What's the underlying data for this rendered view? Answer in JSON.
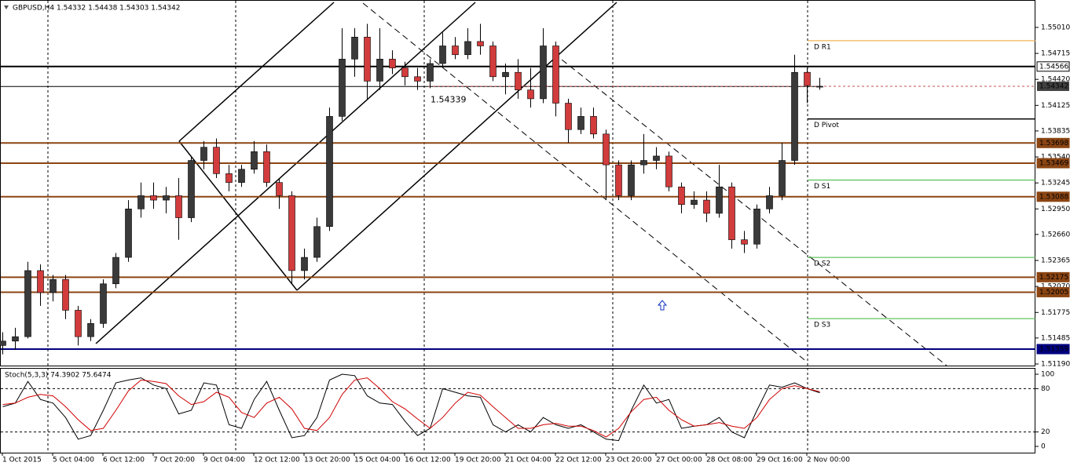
{
  "chart_data": [
    {
      "type": "candlestick",
      "title": "GBPUSD,H4  1.54332 1.54438 1.54303 1.54342",
      "categories": [
        "1 Oct 2015",
        null,
        null,
        null,
        "5 Oct 04:00",
        null,
        null,
        null,
        "6 Oct 12:00",
        null,
        null,
        null,
        "7 Oct 20:00",
        null,
        null,
        null,
        "9 Oct 04:00",
        null,
        null,
        null,
        "12 Oct 12:00",
        null,
        null,
        null,
        "13 Oct 20:00",
        null,
        null,
        null,
        "15 Oct 04:00",
        null,
        null,
        null,
        "16 Oct 12:00",
        null,
        null,
        null,
        "19 Oct 20:00",
        null,
        null,
        null,
        "21 Oct 04:00",
        null,
        null,
        null,
        "22 Oct 12:00",
        null,
        null,
        null,
        "23 Oct 20:00",
        null,
        null,
        null,
        "27 Oct 00:00",
        null,
        null,
        null,
        "28 Oct 08:00",
        null,
        null,
        null,
        "29 Oct 16:00",
        null,
        null,
        null,
        "2 Nov 00:00",
        null
      ],
      "open": [
        1.514,
        1.5145,
        1.515,
        1.5225,
        1.52,
        1.5215,
        1.518,
        1.515,
        1.5165,
        1.521,
        1.524,
        1.5295,
        1.531,
        1.5305,
        1.531,
        1.5285,
        1.535,
        1.5365,
        1.5335,
        1.5325,
        1.534,
        1.536,
        1.5325,
        1.531,
        1.5225,
        1.524,
        1.5275,
        1.54,
        1.5465,
        1.549,
        1.544,
        1.5465,
        1.5455,
        1.5445,
        1.544,
        1.546,
        1.548,
        1.547,
        1.5485,
        1.548,
        1.5445,
        1.545,
        1.543,
        1.542,
        1.548,
        1.5415,
        1.5385,
        1.54,
        1.538,
        1.5345,
        1.531,
        1.5345,
        1.535,
        1.5355,
        1.532,
        1.53,
        1.5305,
        1.529,
        1.532,
        1.526,
        1.5255,
        1.5295,
        1.531,
        1.535,
        1.545,
        1.54332
      ],
      "high": [
        1.5155,
        1.516,
        1.5235,
        1.5232,
        1.522,
        1.522,
        1.5185,
        1.517,
        1.5215,
        1.5245,
        1.5305,
        1.5325,
        1.5325,
        1.532,
        1.533,
        1.5355,
        1.5372,
        1.5375,
        1.5345,
        1.5345,
        1.5372,
        1.5368,
        1.533,
        1.5315,
        1.525,
        1.5285,
        1.541,
        1.55,
        1.55,
        1.5505,
        1.55,
        1.5475,
        1.5462,
        1.5455,
        1.5465,
        1.5495,
        1.549,
        1.55,
        1.5505,
        1.5485,
        1.546,
        1.5465,
        1.5455,
        1.55,
        1.5485,
        1.542,
        1.541,
        1.541,
        1.5385,
        1.535,
        1.535,
        1.538,
        1.5365,
        1.536,
        1.5325,
        1.5315,
        1.5315,
        1.5345,
        1.5325,
        1.527,
        1.53,
        1.532,
        1.537,
        1.547,
        1.5455,
        1.54438
      ],
      "low": [
        1.513,
        1.5135,
        1.5148,
        1.5185,
        1.519,
        1.517,
        1.514,
        1.5145,
        1.516,
        1.5205,
        1.5235,
        1.5285,
        1.5295,
        1.529,
        1.526,
        1.528,
        1.534,
        1.533,
        1.5315,
        1.532,
        1.5335,
        1.532,
        1.5295,
        1.521,
        1.5215,
        1.5235,
        1.527,
        1.5395,
        1.5445,
        1.542,
        1.543,
        1.5448,
        1.5435,
        1.543,
        1.5432,
        1.5455,
        1.5465,
        1.5465,
        1.547,
        1.544,
        1.5425,
        1.542,
        1.541,
        1.5415,
        1.54,
        1.537,
        1.538,
        1.5375,
        1.5305,
        1.5305,
        1.5305,
        1.5335,
        1.534,
        1.5315,
        1.529,
        1.5295,
        1.528,
        1.5285,
        1.525,
        1.5245,
        1.525,
        1.529,
        1.5305,
        1.5345,
        1.5415,
        1.54303
      ],
      "close": [
        1.5145,
        1.515,
        1.5225,
        1.52,
        1.5215,
        1.518,
        1.515,
        1.5165,
        1.521,
        1.524,
        1.5295,
        1.531,
        1.5305,
        1.531,
        1.5285,
        1.535,
        1.5365,
        1.5335,
        1.5325,
        1.534,
        1.536,
        1.5325,
        1.531,
        1.5225,
        1.524,
        1.5275,
        1.54,
        1.5465,
        1.549,
        1.544,
        1.5465,
        1.5455,
        1.5445,
        1.544,
        1.546,
        1.548,
        1.547,
        1.5485,
        1.548,
        1.5445,
        1.545,
        1.543,
        1.542,
        1.548,
        1.5415,
        1.5385,
        1.54,
        1.538,
        1.5345,
        1.531,
        1.5345,
        1.535,
        1.5355,
        1.532,
        1.53,
        1.5305,
        1.529,
        1.532,
        1.526,
        1.5255,
        1.5295,
        1.531,
        1.535,
        1.545,
        1.5435,
        1.54342
      ],
      "up_color": "#3a3a3a",
      "down_color": "#d23c3c",
      "ylim": [
        1.51172,
        1.55312
      ],
      "yticks": [
        {
          "value": 1.5501,
          "label": "1.55010"
        },
        {
          "value": 1.54715,
          "label": "1.54715"
        },
        {
          "value": 1.5442,
          "label": "1.54420"
        },
        {
          "value": 1.54125,
          "label": "1.54125"
        },
        {
          "value": 1.53835,
          "label": "1.53835"
        },
        {
          "value": 1.5354,
          "label": "1.53540"
        },
        {
          "value": 1.53245,
          "label": "1.53245"
        },
        {
          "value": 1.5295,
          "label": "1.52950"
        },
        {
          "value": 1.5266,
          "label": "1.52660"
        },
        {
          "value": 1.52365,
          "label": "1.52365"
        },
        {
          "value": 1.5207,
          "label": "1.52070"
        },
        {
          "value": 1.51775,
          "label": "1.51775"
        },
        {
          "value": 1.51485,
          "label": "1.51485"
        },
        {
          "value": 1.5119,
          "label": "1.51190"
        }
      ],
      "levels": [
        {
          "value": 1.54566,
          "color": "#000000"
        },
        {
          "value": 1.53698,
          "color": "#8b4513"
        },
        {
          "value": 1.53469,
          "color": "#8b4513"
        },
        {
          "value": 1.53088,
          "color": "#8b4513"
        },
        {
          "value": 1.52175,
          "color": "#8b4513"
        },
        {
          "value": 1.52005,
          "color": "#8b4513"
        },
        {
          "value": 1.51359,
          "color": "#000080"
        }
      ],
      "annotation": {
        "value": 1.54339,
        "color": "#000000"
      },
      "bid": 1.54342,
      "bid_color": "#c0504d",
      "pivots": [
        {
          "name": "D R1",
          "value": 1.54859,
          "color": "#f0a030"
        },
        {
          "name": "D Pivot",
          "value": 1.53971,
          "color": "#000000"
        },
        {
          "name": "D S1",
          "value": 1.53278,
          "color": "#3cb43c"
        },
        {
          "name": "D S2",
          "value": 1.52399,
          "color": "#3cb43c"
        },
        {
          "name": "D S3",
          "value": 1.51705,
          "color": "#3cb43c"
        }
      ]
    },
    {
      "type": "stochastic",
      "title": "Stoch(5,3,3) 74.3902 75.6474",
      "series": [
        {
          "color": "#000000",
          "values": [
            55,
            60,
            90,
            65,
            60,
            40,
            10,
            15,
            50,
            88,
            92,
            95,
            85,
            80,
            45,
            50,
            88,
            85,
            30,
            25,
            65,
            90,
            50,
            12,
            15,
            40,
            92,
            100,
            98,
            70,
            60,
            58,
            35,
            15,
            25,
            80,
            75,
            70,
            68,
            30,
            20,
            30,
            20,
            40,
            30,
            25,
            30,
            20,
            10,
            8,
            50,
            85,
            60,
            65,
            25,
            28,
            30,
            40,
            20,
            12,
            50,
            85,
            82,
            88,
            80,
            74.3902
          ]
        },
        {
          "color": "#d00000",
          "values": [
            58,
            60,
            68,
            72,
            70,
            55,
            37,
            22,
            25,
            50,
            77,
            92,
            90,
            87,
            70,
            58,
            62,
            75,
            68,
            47,
            40,
            60,
            68,
            52,
            25,
            22,
            40,
            72,
            92,
            95,
            80,
            62,
            52,
            38,
            25,
            40,
            60,
            75,
            71,
            55,
            40,
            25,
            25,
            30,
            32,
            28,
            28,
            22,
            13,
            25,
            48,
            65,
            68,
            50,
            37,
            28,
            30,
            33,
            28,
            25,
            40,
            65,
            80,
            84,
            80,
            75.6474
          ]
        }
      ],
      "ylim": [
        0,
        100
      ],
      "yticks": [
        100,
        80,
        20,
        0
      ],
      "levels": [
        80,
        20
      ]
    }
  ]
}
